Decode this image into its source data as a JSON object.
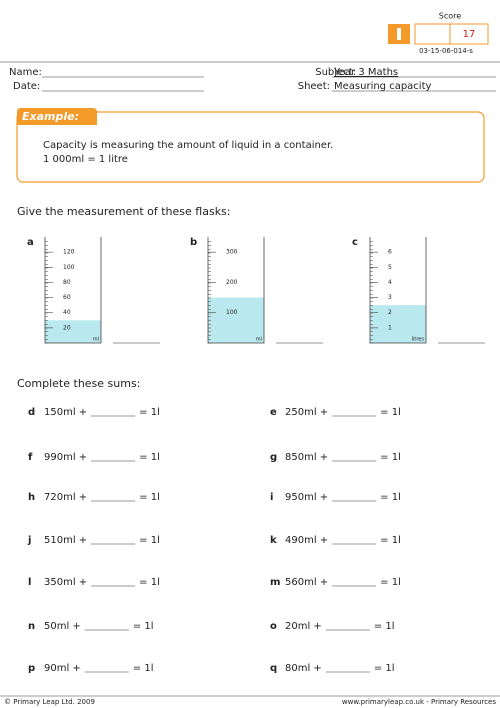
{
  "header": {
    "score_label": "Score",
    "score": "17",
    "code": "03-15-06-014-s"
  },
  "fields": {
    "name": "Name:",
    "date": "Date:",
    "subject_label": "Subject:",
    "subject": "Year 3 Maths",
    "sheet_label": "Sheet:",
    "sheet": "Measuring capacity"
  },
  "example": {
    "title": "Example:",
    "lines": [
      "Capacity is measuring the amount of liquid in a container.",
      "1 000ml = 1 litre"
    ]
  },
  "flasks": {
    "heading": "Give the measurement of these flasks:",
    "items": [
      {
        "letter": "a",
        "unit": "ml",
        "ylim": [
          0,
          140
        ],
        "ticks": [
          20,
          40,
          60,
          80,
          100,
          120
        ],
        "level": 30
      },
      {
        "letter": "b",
        "unit": "ml",
        "ylim": [
          0,
          350
        ],
        "ticks": [
          100,
          200,
          300
        ],
        "level": 150
      },
      {
        "letter": "c",
        "unit": "litres",
        "ylim": [
          0,
          7
        ],
        "ticks": [
          1,
          2,
          3,
          4,
          5,
          6
        ],
        "level": 2.5
      }
    ]
  },
  "sums": {
    "heading": "Complete these sums:",
    "items": [
      {
        "letter": "d",
        "start": "150ml +",
        "end": "= 1l"
      },
      {
        "letter": "e",
        "start": "250ml +",
        "end": "= 1l"
      },
      {
        "letter": "f",
        "start": "990ml +",
        "end": "= 1l"
      },
      {
        "letter": "g",
        "start": "850ml +",
        "end": "= 1l"
      },
      {
        "letter": "h",
        "start": "720ml +",
        "end": "= 1l"
      },
      {
        "letter": "i",
        "start": "950ml +",
        "end": "= 1l"
      },
      {
        "letter": "j",
        "start": "510ml +",
        "end": "= 1l"
      },
      {
        "letter": "k",
        "start": "490ml +",
        "end": "= 1l"
      },
      {
        "letter": "l",
        "start": "350ml +",
        "end": "= 1l"
      },
      {
        "letter": "m",
        "start": "560ml +",
        "end": "= 1l"
      },
      {
        "letter": "n",
        "start": "50ml +",
        "end": "= 1l"
      },
      {
        "letter": "o",
        "start": "20ml +",
        "end": "= 1l"
      },
      {
        "letter": "p",
        "start": "90ml +",
        "end": "= 1l"
      },
      {
        "letter": "q",
        "start": "80ml +",
        "end": "= 1l"
      }
    ]
  },
  "footer": {
    "left": "© Primary Leap Ltd. 2009",
    "right": "www.primaryleap.co.uk  -  Primary Resources"
  }
}
